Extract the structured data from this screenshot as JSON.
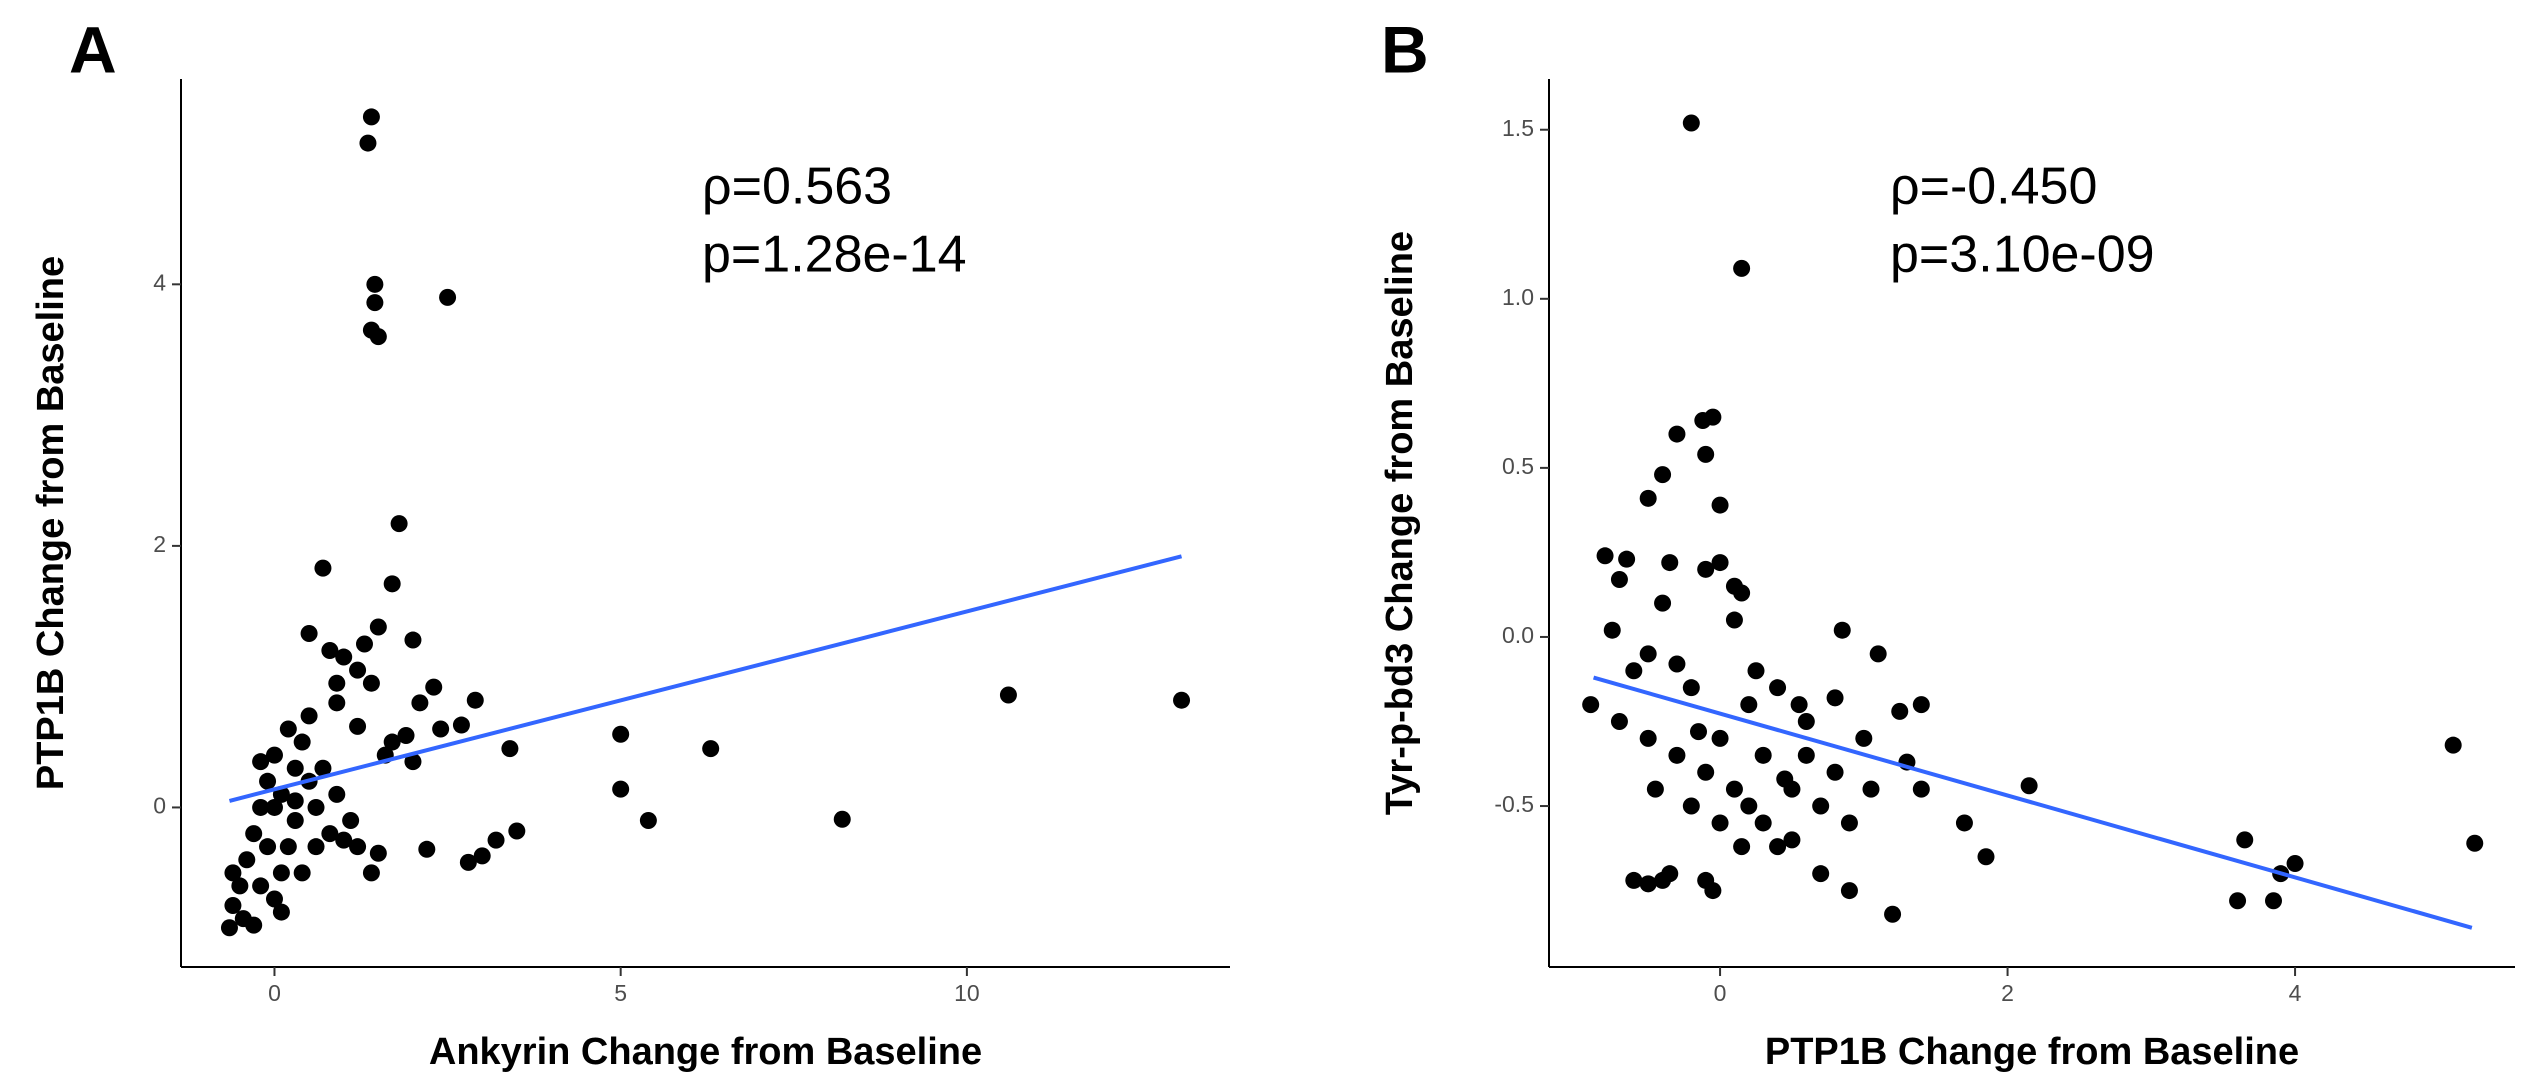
{
  "chart_data": [
    {
      "type": "scatter",
      "panel_label": "A",
      "x_label": "Ankyrin Change from Baseline",
      "y_label": "PTP1B Change from Baseline",
      "annotations": [
        "ρ=0.563",
        "p=1.28e-14"
      ],
      "xlim": [
        -1.35,
        13.8
      ],
      "ylim": [
        -1.22,
        5.57
      ],
      "xticks": [
        0,
        5,
        10
      ],
      "yticks": [
        0,
        2,
        4
      ],
      "series": [
        {
          "color": "#000000",
          "x": [
            1.4,
            1.35,
            1.45,
            1.45,
            1.4,
            1.5,
            2.5,
            1.8,
            0.7,
            1.7,
            1.5,
            0.5,
            2.0,
            1.3,
            0.8,
            1.0,
            1.2,
            1.4,
            2.3,
            2.1,
            2.9,
            2.7,
            3.4,
            5.0,
            6.3,
            10.6,
            13.1,
            5.0,
            5.4,
            8.2,
            2.2,
            2.8,
            3.0,
            3.2,
            3.5,
            1.4,
            1.2,
            1.0,
            0.8,
            0.6,
            0.9,
            0.7,
            0.4,
            0.2,
            0.0,
            -0.1,
            -0.2,
            -0.3,
            -0.4,
            -0.5,
            -0.6,
            -0.65,
            -0.45,
            -0.3,
            -0.2,
            0.0,
            0.1,
            0.2,
            0.3,
            0.1,
            0.3,
            0.5,
            0.0,
            -0.1,
            0.1,
            1.6,
            2.0,
            1.9,
            2.4,
            1.2,
            0.9,
            1.7,
            1.5,
            1.1,
            0.6,
            0.4,
            -0.6,
            0.3,
            -0.2,
            0.5,
            0.9
          ],
          "y": [
            5.28,
            5.08,
            4.0,
            3.86,
            3.65,
            3.6,
            3.9,
            2.17,
            1.83,
            1.71,
            1.38,
            1.33,
            1.28,
            1.25,
            1.2,
            1.15,
            1.05,
            0.95,
            0.92,
            0.8,
            0.82,
            0.63,
            0.45,
            0.56,
            0.45,
            0.86,
            0.82,
            0.14,
            -0.1,
            -0.09,
            -0.32,
            -0.42,
            -0.37,
            -0.25,
            -0.18,
            -0.5,
            -0.3,
            -0.25,
            -0.2,
            0.0,
            0.1,
            0.3,
            0.5,
            0.6,
            0.4,
            0.2,
            0.0,
            -0.2,
            -0.4,
            -0.6,
            -0.75,
            -0.92,
            -0.85,
            -0.9,
            -0.6,
            -0.7,
            -0.5,
            -0.3,
            -0.1,
            0.1,
            0.3,
            0.2,
            0.0,
            -0.3,
            -0.8,
            0.4,
            0.35,
            0.55,
            0.6,
            0.62,
            0.8,
            0.5,
            -0.35,
            -0.1,
            -0.3,
            -0.5,
            -0.5,
            0.05,
            0.35,
            0.7,
            0.95
          ]
        }
      ],
      "fit": {
        "color": "#3366ff",
        "x": [
          -0.65,
          13.1
        ],
        "y": [
          0.05,
          1.92
        ]
      }
    },
    {
      "type": "scatter",
      "panel_label": "B",
      "x_label": "PTP1B Change from Baseline",
      "y_label": "Tyr-p-bd3 Change from Baseline",
      "annotations": [
        "ρ=-0.450",
        "p=3.10e-09"
      ],
      "xlim": [
        -1.19,
        5.53
      ],
      "ylim": [
        -0.976,
        1.65
      ],
      "xticks": [
        0,
        2,
        4
      ],
      "yticks": [
        -0.5,
        {
          "value": 0,
          "label": "0.0"
        },
        0.5,
        {
          "value": 1,
          "label": "1.0"
        },
        1.5
      ],
      "series": [
        {
          "color": "#000000",
          "x": [
            -0.2,
            0.15,
            -0.05,
            -0.12,
            -0.1,
            0.0,
            -0.3,
            -0.4,
            -0.5,
            -0.8,
            -0.65,
            -0.35,
            0.0,
            -0.1,
            0.1,
            0.15,
            -0.7,
            -0.4,
            0.1,
            0.85,
            -0.75,
            -0.5,
            -0.3,
            -0.6,
            -0.2,
            -0.9,
            -0.7,
            -0.5,
            -0.3,
            -0.1,
            0.1,
            0.2,
            0.3,
            0.5,
            0.7,
            0.9,
            1.2,
            1.4,
            1.3,
            1.25,
            1.4,
            1.7,
            1.85,
            2.15,
            3.6,
            3.65,
            3.85,
            3.9,
            4.0,
            5.1,
            5.25,
            -0.6,
            -0.5,
            -0.4,
            -0.35,
            -0.1,
            -0.05,
            0.0,
            0.2,
            0.4,
            0.6,
            0.8,
            1.0,
            1.1,
            0.5,
            0.3,
            0.7,
            0.9,
            -0.2,
            0.0,
            0.4,
            0.6,
            0.8,
            0.25,
            0.55,
            -0.15,
            0.45,
            1.05,
            -0.45,
            0.15
          ],
          "y": [
            1.52,
            1.09,
            0.65,
            0.64,
            0.54,
            0.39,
            0.6,
            0.48,
            0.41,
            0.24,
            0.23,
            0.22,
            0.22,
            0.2,
            0.15,
            0.13,
            0.17,
            0.1,
            0.05,
            0.02,
            0.02,
            -0.05,
            -0.08,
            -0.1,
            -0.15,
            -0.2,
            -0.25,
            -0.3,
            -0.35,
            -0.4,
            -0.45,
            -0.5,
            -0.55,
            -0.6,
            -0.7,
            -0.75,
            -0.82,
            -0.45,
            -0.37,
            -0.22,
            -0.2,
            -0.55,
            -0.65,
            -0.44,
            -0.78,
            -0.6,
            -0.78,
            -0.7,
            -0.67,
            -0.32,
            -0.61,
            -0.72,
            -0.73,
            -0.72,
            -0.7,
            -0.72,
            -0.75,
            -0.3,
            -0.2,
            -0.15,
            -0.25,
            -0.4,
            -0.3,
            -0.05,
            -0.45,
            -0.35,
            -0.5,
            -0.55,
            -0.5,
            -0.55,
            -0.62,
            -0.35,
            -0.18,
            -0.1,
            -0.2,
            -0.28,
            -0.42,
            -0.45,
            -0.45,
            -0.62
          ]
        }
      ],
      "fit": {
        "color": "#3366ff",
        "x": [
          -0.88,
          5.23
        ],
        "y": [
          -0.12,
          -0.86
        ]
      }
    }
  ]
}
